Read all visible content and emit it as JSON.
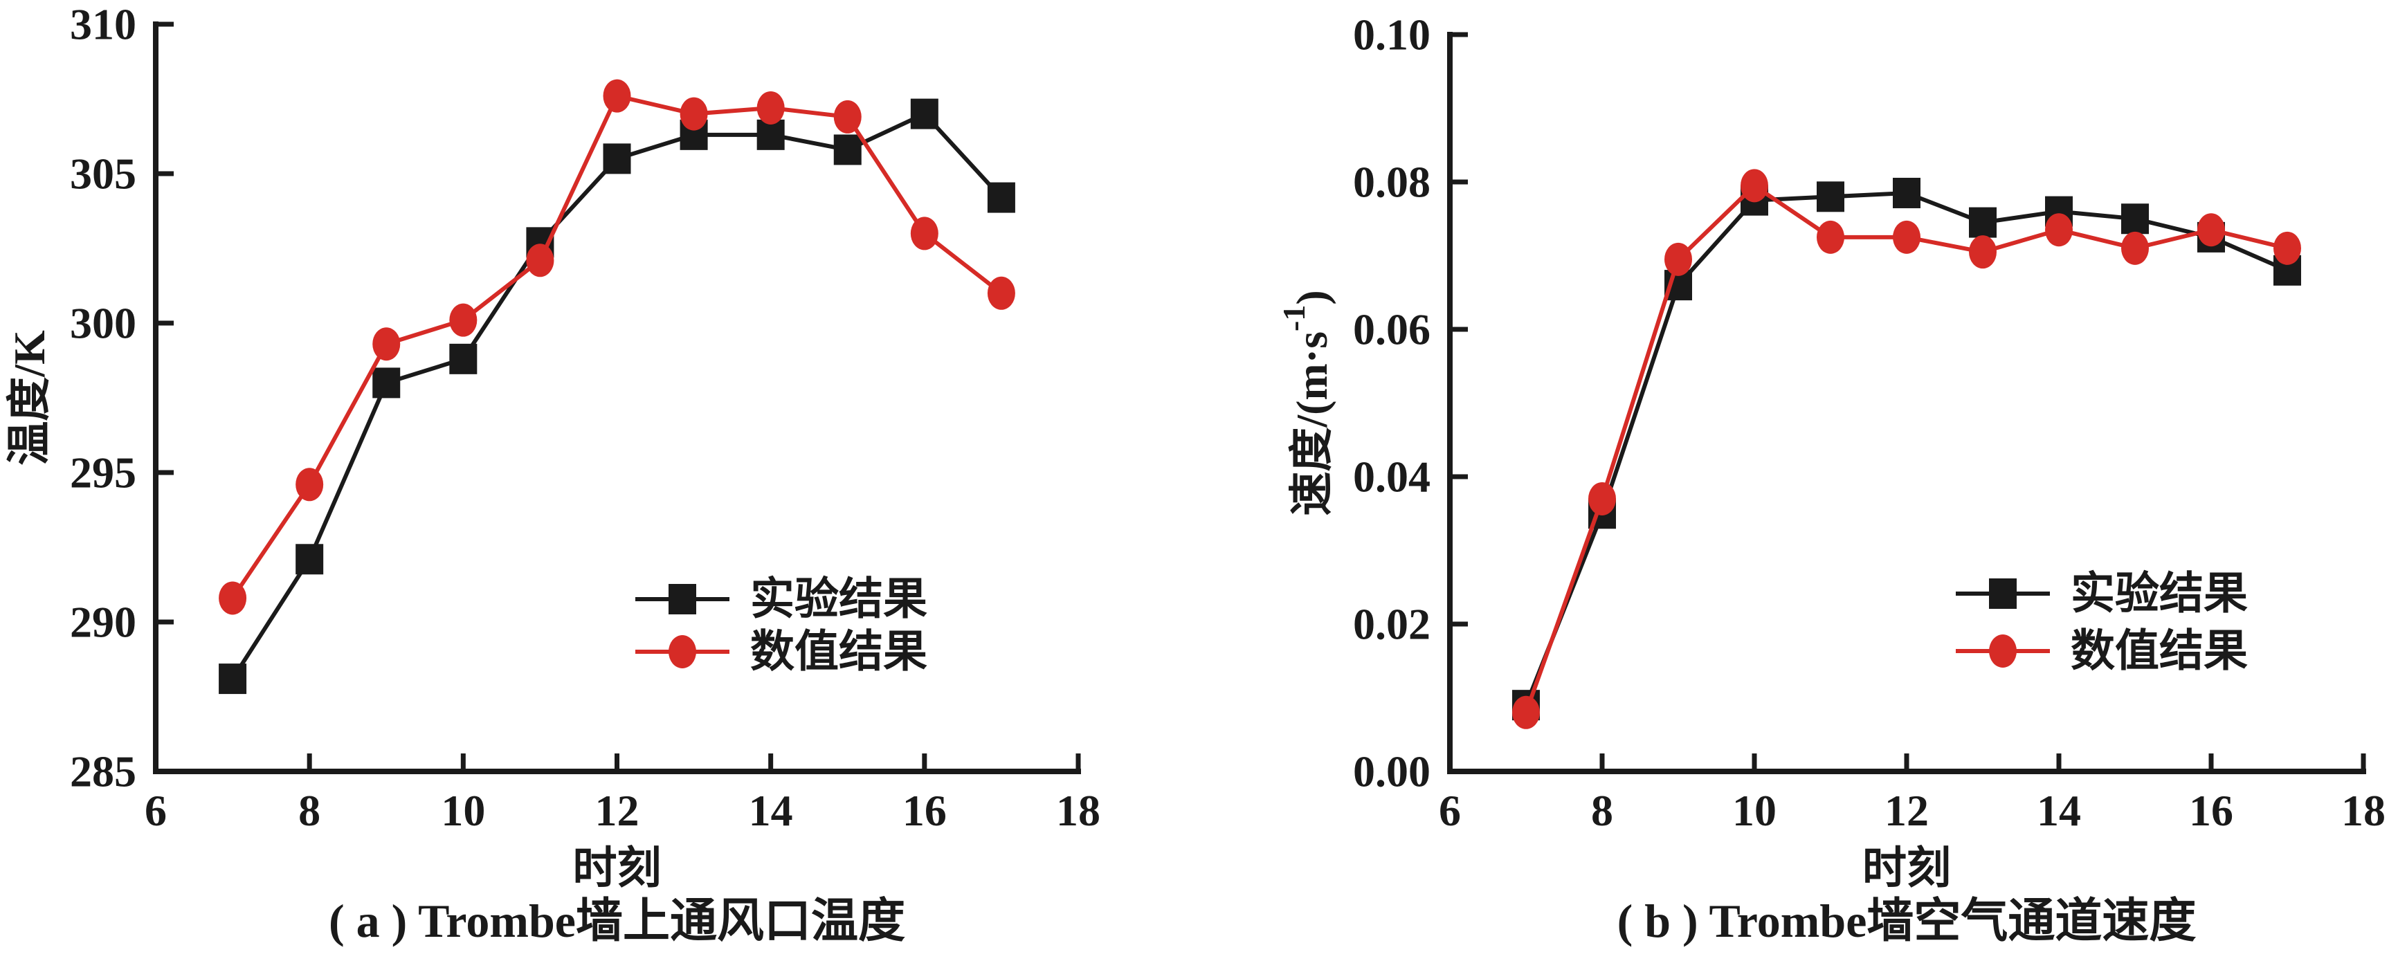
{
  "page": {
    "background": "#ffffff",
    "description": "Two side-by-side line charts comparing experimental and numerical results for a Trombe wall"
  },
  "colors": {
    "experimental": "#1a1a1a",
    "numerical": "#d62b26",
    "axis": "#1a1a1a"
  },
  "chart_data": [
    {
      "id": "a",
      "type": "line",
      "title": "( a ) Trombe墙上通风口温度",
      "xlabel": "时刻",
      "ylabel": "温度/K",
      "ylabel_parts": [
        {
          "text": "温度/K"
        }
      ],
      "xlim": [
        6,
        18
      ],
      "ylim": [
        285,
        310
      ],
      "xticks": [
        6,
        8,
        10,
        12,
        14,
        16,
        18
      ],
      "xtick_labels": [
        "6",
        "8",
        "10",
        "12",
        "14",
        "16",
        "18"
      ],
      "yticks": [
        285,
        290,
        295,
        300,
        305,
        310
      ],
      "ytick_labels": [
        "285",
        "290",
        "295",
        "300",
        "305",
        "310"
      ],
      "grid": false,
      "legend_position": "inside lower right",
      "x": [
        7,
        8,
        9,
        10,
        11,
        12,
        13,
        14,
        15,
        16,
        17
      ],
      "series": [
        {
          "key": "experimental",
          "name": "实验结果",
          "marker": "square",
          "values": [
            288.1,
            292.1,
            298.0,
            298.8,
            302.7,
            305.5,
            306.3,
            306.3,
            305.8,
            307.0,
            304.2
          ]
        },
        {
          "key": "numerical",
          "name": "数值结果",
          "marker": "circle",
          "values": [
            290.8,
            294.6,
            299.3,
            300.1,
            302.1,
            307.6,
            307.0,
            307.2,
            306.9,
            303.0,
            301.0
          ]
        }
      ]
    },
    {
      "id": "b",
      "type": "line",
      "title": "( b ) Trombe墙空气通道速度",
      "xlabel": "时刻",
      "ylabel": "速度/(m·s⁻¹)",
      "ylabel_parts": [
        {
          "text": "速度/(m·s"
        },
        {
          "text": "-1",
          "sup": true
        },
        {
          "text": ")"
        }
      ],
      "xlim": [
        6,
        18
      ],
      "ylim": [
        0.0,
        0.1
      ],
      "xticks": [
        6,
        8,
        10,
        12,
        14,
        16,
        18
      ],
      "xtick_labels": [
        "6",
        "8",
        "10",
        "12",
        "14",
        "16",
        "18"
      ],
      "yticks": [
        0.0,
        0.02,
        0.04,
        0.06,
        0.08,
        0.1
      ],
      "ytick_labels": [
        "0.00",
        "0.02",
        "0.04",
        "0.06",
        "0.08",
        "0.10"
      ],
      "grid": false,
      "legend_position": "inside lower right",
      "x": [
        7,
        8,
        9,
        10,
        11,
        12,
        13,
        14,
        15,
        16,
        17
      ],
      "series": [
        {
          "key": "experimental",
          "name": "实验结果",
          "marker": "square",
          "values": [
            0.009,
            0.035,
            0.066,
            0.0775,
            0.078,
            0.0785,
            0.0745,
            0.076,
            0.075,
            0.0725,
            0.068
          ]
        },
        {
          "key": "numerical",
          "name": "数值结果",
          "marker": "circle",
          "values": [
            0.008,
            0.037,
            0.0695,
            0.0795,
            0.0725,
            0.0725,
            0.0705,
            0.0735,
            0.071,
            0.0735,
            0.071
          ]
        }
      ]
    }
  ],
  "legend_labels": {
    "experimental": "实验结果",
    "numerical": "数值结果"
  }
}
